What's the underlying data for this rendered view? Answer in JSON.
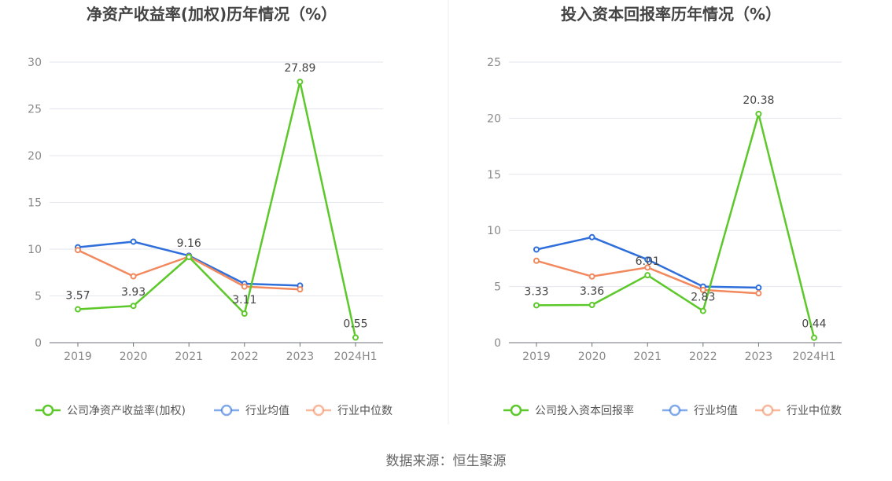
{
  "source": "数据来源：恒生聚源",
  "chart_data": [
    {
      "type": "line",
      "title": "净资产收益率(加权)历年情况（%）",
      "categories": [
        "2019",
        "2020",
        "2021",
        "2022",
        "2023",
        "2024H1"
      ],
      "ylim": [
        0,
        30
      ],
      "yticks": [
        0,
        5,
        10,
        15,
        20,
        25,
        30
      ],
      "grid": true,
      "legend_position": "bottom",
      "series": [
        {
          "name": "公司净资产收益率(加权)",
          "color": "#5cc82a",
          "labeled": true,
          "values": [
            3.57,
            3.93,
            9.16,
            3.11,
            27.89,
            0.55
          ]
        },
        {
          "name": "行业均值",
          "color": "#2f6fdb",
          "labeled": false,
          "values": [
            10.2,
            10.8,
            9.3,
            6.3,
            6.1,
            null
          ]
        },
        {
          "name": "行业中位数",
          "color": "#f2895e",
          "labeled": false,
          "values": [
            9.9,
            7.1,
            9.2,
            6.0,
            5.7,
            null
          ]
        }
      ]
    },
    {
      "type": "line",
      "title": "投入资本回报率历年情况（%）",
      "categories": [
        "2019",
        "2020",
        "2021",
        "2022",
        "2023",
        "2024H1"
      ],
      "ylim": [
        0,
        25
      ],
      "yticks": [
        0,
        5,
        10,
        15,
        20,
        25
      ],
      "grid": true,
      "legend_position": "bottom",
      "series": [
        {
          "name": "公司投入资本回报率",
          "color": "#5cc82a",
          "labeled": true,
          "values": [
            3.33,
            3.36,
            6.01,
            2.83,
            20.38,
            0.44
          ]
        },
        {
          "name": "行业均值",
          "color": "#2f6fdb",
          "labeled": false,
          "values": [
            8.3,
            9.4,
            7.4,
            5.0,
            4.9,
            null
          ]
        },
        {
          "name": "行业中位数",
          "color": "#f2895e",
          "labeled": false,
          "values": [
            7.3,
            5.9,
            6.7,
            4.7,
            4.4,
            null
          ]
        }
      ]
    }
  ]
}
